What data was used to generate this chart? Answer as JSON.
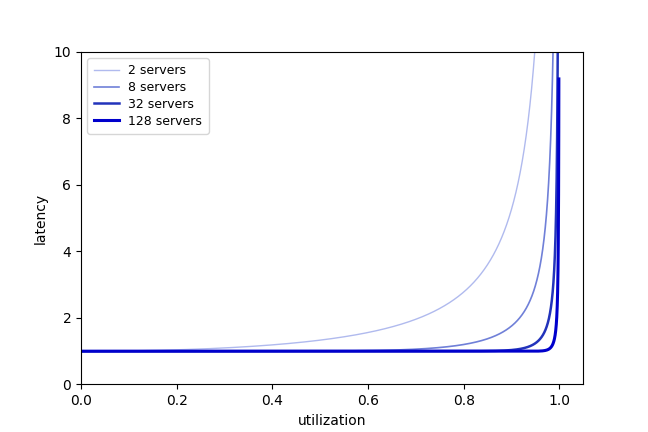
{
  "servers": [
    2,
    8,
    32,
    128
  ],
  "colors": [
    "#b0baee",
    "#7080d8",
    "#2233bb",
    "#0000cc"
  ],
  "linewidths": [
    1.0,
    1.2,
    1.8,
    2.2
  ],
  "xlabel": "utilization",
  "ylabel": "latency",
  "xlim": [
    0.0,
    1.05
  ],
  "ylim": [
    0,
    10
  ],
  "yticks": [
    0,
    2,
    4,
    6,
    8,
    10
  ],
  "xticks": [
    0.0,
    0.2,
    0.4,
    0.6,
    0.8,
    1.0
  ],
  "legend_labels": [
    "2 servers",
    "8 servers",
    "32 servers",
    "128 servers"
  ],
  "background_color": "#ffffff",
  "legend_fontsize": 9,
  "axis_fontsize": 10
}
